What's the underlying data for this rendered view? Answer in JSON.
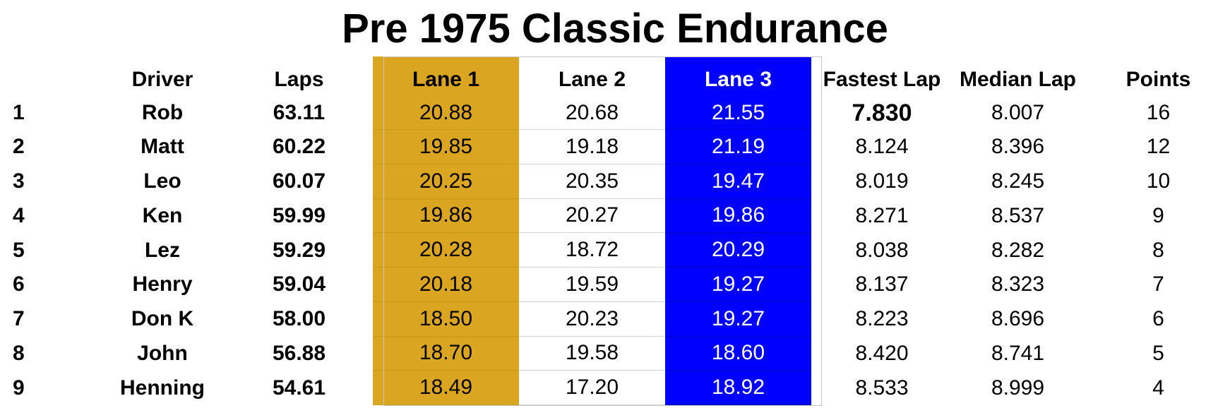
{
  "title": "Pre 1975 Classic Endurance",
  "colors": {
    "lane1": "#daa520",
    "lane3": "#0000ff",
    "text": "#000000"
  },
  "headers": {
    "driver": "Driver",
    "laps": "Laps",
    "lane1": "Lane 1",
    "lane2": "Lane 2",
    "lane3": "Lane 3",
    "fastest_lap": "Fastest Lap",
    "median_lap": "Median Lap",
    "points": "Points"
  },
  "rows": [
    {
      "pos": "1",
      "driver": "Rob",
      "laps": "63.11",
      "lane1": "20.88",
      "lane2": "20.68",
      "lane3": "21.55",
      "fastest": "7.830",
      "median": "8.007",
      "points": "16"
    },
    {
      "pos": "2",
      "driver": "Matt",
      "laps": "60.22",
      "lane1": "19.85",
      "lane2": "19.18",
      "lane3": "21.19",
      "fastest": "8.124",
      "median": "8.396",
      "points": "12"
    },
    {
      "pos": "3",
      "driver": "Leo",
      "laps": "60.07",
      "lane1": "20.25",
      "lane2": "20.35",
      "lane3": "19.47",
      "fastest": "8.019",
      "median": "8.245",
      "points": "10"
    },
    {
      "pos": "4",
      "driver": "Ken",
      "laps": "59.99",
      "lane1": "19.86",
      "lane2": "20.27",
      "lane3": "19.86",
      "fastest": "8.271",
      "median": "8.537",
      "points": "9"
    },
    {
      "pos": "5",
      "driver": "Lez",
      "laps": "59.29",
      "lane1": "20.28",
      "lane2": "18.72",
      "lane3": "20.29",
      "fastest": "8.038",
      "median": "8.282",
      "points": "8"
    },
    {
      "pos": "6",
      "driver": "Henry",
      "laps": "59.04",
      "lane1": "20.18",
      "lane2": "19.59",
      "lane3": "19.27",
      "fastest": "8.137",
      "median": "8.323",
      "points": "7"
    },
    {
      "pos": "7",
      "driver": "Don K",
      "laps": "58.00",
      "lane1": "18.50",
      "lane2": "20.23",
      "lane3": "19.27",
      "fastest": "8.223",
      "median": "8.696",
      "points": "6"
    },
    {
      "pos": "8",
      "driver": "John",
      "laps": "56.88",
      "lane1": "18.70",
      "lane2": "19.58",
      "lane3": "18.60",
      "fastest": "8.420",
      "median": "8.741",
      "points": "5"
    },
    {
      "pos": "9",
      "driver": "Henning",
      "laps": "54.61",
      "lane1": "18.49",
      "lane2": "17.20",
      "lane3": "18.92",
      "fastest": "8.533",
      "median": "8.999",
      "points": "4"
    }
  ]
}
